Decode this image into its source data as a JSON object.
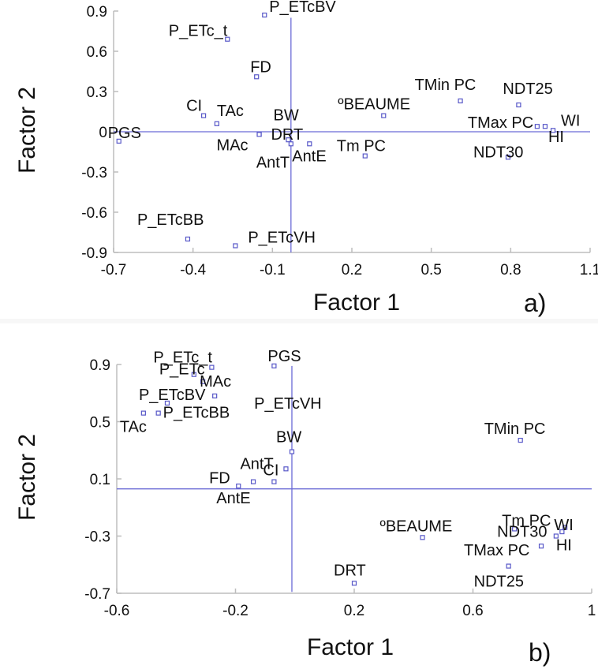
{
  "chart_data": [
    {
      "type": "scatter",
      "panel_label": "a)",
      "xlabel": "Factor 1",
      "ylabel": "Factor 2",
      "xlim": [
        -0.7,
        1.1
      ],
      "ylim": [
        -0.9,
        0.9
      ],
      "xticks": [
        "-0.7",
        "-0.4",
        "-0.1",
        "0.2",
        "0.5",
        "0.8",
        "1.1"
      ],
      "yticks": [
        "0.9",
        "0.6",
        "0.3",
        "0",
        "-0.3",
        "-0.6",
        "-0.9"
      ],
      "points": [
        {
          "label": "P_ETcBV",
          "x": -0.13,
          "y": 0.87
        },
        {
          "label": "P_ETc_t",
          "x": -0.27,
          "y": 0.69
        },
        {
          "label": "FD",
          "x": -0.16,
          "y": 0.41
        },
        {
          "label": "CI",
          "x": -0.36,
          "y": 0.12
        },
        {
          "label": "TAc",
          "x": -0.31,
          "y": 0.06
        },
        {
          "label": "BW",
          "x": -0.15,
          "y": -0.02
        },
        {
          "label": "MAc",
          "x": -0.15,
          "y": -0.02
        },
        {
          "label": "PGS",
          "x": -0.68,
          "y": -0.07
        },
        {
          "label": "DRT",
          "x": -0.04,
          "y": -0.06
        },
        {
          "label": "AntT",
          "x": -0.03,
          "y": -0.09
        },
        {
          "label": "AntE",
          "x": 0.04,
          "y": -0.09
        },
        {
          "label": "ºBEAUME",
          "x": 0.32,
          "y": 0.12
        },
        {
          "label": "Tm PC",
          "x": 0.25,
          "y": -0.18
        },
        {
          "label": "TMin PC",
          "x": 0.61,
          "y": 0.23
        },
        {
          "label": "NDT25",
          "x": 0.83,
          "y": 0.2
        },
        {
          "label": "TMax PC",
          "x": 0.9,
          "y": 0.04
        },
        {
          "label": "WI",
          "x": 0.96,
          "y": 0.01
        },
        {
          "label": "HI",
          "x": 0.93,
          "y": 0.04
        },
        {
          "label": "NDT30",
          "x": 0.79,
          "y": -0.19
        },
        {
          "label": "P_ETcBB",
          "x": -0.42,
          "y": -0.8
        },
        {
          "label": "P_ETcVH",
          "x": -0.24,
          "y": -0.85
        }
      ]
    },
    {
      "type": "scatter",
      "panel_label": "b)",
      "xlabel": "Factor 1",
      "ylabel": "Factor 2",
      "xlim": [
        -0.6,
        1.0
      ],
      "ylim": [
        -0.7,
        0.9
      ],
      "xticks": [
        "-0.6",
        "-0.2",
        "0.2",
        "0.6",
        "1"
      ],
      "yticks": [
        "0.9",
        "0.5",
        "0.1",
        "-0.3",
        "-0.7"
      ],
      "points": [
        {
          "label": "PGS",
          "x": -0.07,
          "y": 0.89
        },
        {
          "label": "P_ETc_t",
          "x": -0.28,
          "y": 0.88
        },
        {
          "label": "P_ETc",
          "x": -0.34,
          "y": 0.83
        },
        {
          "label": "MAc",
          "x": -0.31,
          "y": 0.78
        },
        {
          "label": "P_ETcVH",
          "x": -0.27,
          "y": 0.68
        },
        {
          "label": "P_ETcBV",
          "x": -0.43,
          "y": 0.63
        },
        {
          "label": "TAc",
          "x": -0.51,
          "y": 0.56
        },
        {
          "label": "P_ETcBB",
          "x": -0.46,
          "y": 0.56
        },
        {
          "label": "BW",
          "x": -0.01,
          "y": 0.29
        },
        {
          "label": "AntT",
          "x": -0.03,
          "y": 0.17
        },
        {
          "label": "CI",
          "x": -0.07,
          "y": 0.08
        },
        {
          "label": "FD",
          "x": -0.14,
          "y": 0.08
        },
        {
          "label": "AntE",
          "x": -0.19,
          "y": 0.05
        },
        {
          "label": "TMin PC",
          "x": 0.76,
          "y": 0.37
        },
        {
          "label": "NDT30",
          "x": 0.91,
          "y": -0.24
        },
        {
          "label": "Tm PC",
          "x": 0.74,
          "y": -0.25
        },
        {
          "label": "WI",
          "x": 0.9,
          "y": -0.27
        },
        {
          "label": "HI",
          "x": 0.88,
          "y": -0.3
        },
        {
          "label": "ºBEAUME",
          "x": 0.43,
          "y": -0.31
        },
        {
          "label": "TMax PC",
          "x": 0.83,
          "y": -0.37
        },
        {
          "label": "NDT25",
          "x": 0.72,
          "y": -0.51
        },
        {
          "label": "DRT",
          "x": 0.2,
          "y": -0.63
        }
      ]
    }
  ]
}
